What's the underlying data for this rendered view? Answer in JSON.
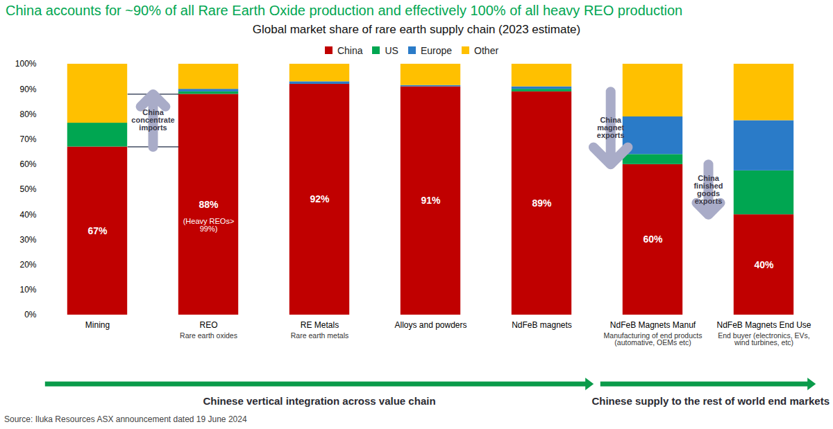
{
  "chart_data": {
    "type": "bar",
    "stacked": true,
    "title": "China accounts for ~90% of all Rare Earth Oxide production and effectively 100% of all heavy REO production",
    "subtitle": "Global market share of rare earth supply chain (2023 estimate)",
    "source": "Source: Iluka Resources ASX announcement dated 19 June 2024",
    "categories": [
      "Mining",
      "REO",
      "RE Metals",
      "Alloys and powders",
      "NdFeB magnets",
      "NdFeB Magnets Manuf",
      "NdFeB Magnets End Use"
    ],
    "category_descriptions": [
      null,
      "Rare earth oxides",
      "Rare earth metals",
      null,
      null,
      "Manufacturing of end products (automative, OEMs etc)",
      "End buyer (electronics, EVs, wind turbines, etc)"
    ],
    "series": [
      {
        "name": "China",
        "color": "#c00000",
        "values": [
          67,
          88,
          92,
          91,
          89,
          60,
          40
        ],
        "value_labels": [
          "67%",
          "88%",
          "92%",
          "91%",
          "89%",
          "60%",
          "40%"
        ],
        "data_labels": true
      },
      {
        "name": "US",
        "color": "#00a651",
        "values": [
          9.5,
          1,
          0,
          0,
          1,
          4,
          17.5
        ]
      },
      {
        "name": "Europe",
        "color": "#2a7bc8",
        "values": [
          0,
          1,
          1,
          0.5,
          1,
          15,
          20
        ]
      },
      {
        "name": "Other",
        "color": "#ffc000",
        "values": [
          23.5,
          10,
          7,
          8.5,
          9,
          21,
          22.5
        ]
      }
    ],
    "ylim": [
      0,
      100
    ],
    "yticks": [
      {
        "value": 0,
        "label": "0%"
      },
      {
        "value": 10,
        "label": "10%"
      },
      {
        "value": 20,
        "label": "20%"
      },
      {
        "value": 30,
        "label": "30%"
      },
      {
        "value": 40,
        "label": "40%"
      },
      {
        "value": 50,
        "label": "50%"
      },
      {
        "value": 60,
        "label": "60%"
      },
      {
        "value": 70,
        "label": "70%"
      },
      {
        "value": 80,
        "label": "80%"
      },
      {
        "value": 90,
        "label": "90%"
      },
      {
        "value": 100,
        "label": "100%"
      }
    ],
    "grid": false,
    "legend": "top",
    "annotations": [
      {
        "text": "(Heavy REOs> 99%)",
        "category": "REO"
      },
      {
        "text": "China concentrate imports",
        "from": "Mining",
        "to": "REO"
      },
      {
        "text": "China magnet exports",
        "from": "NdFeB magnets",
        "to": "NdFeB Magnets Manuf"
      },
      {
        "text": "China finished goods exports",
        "from": "NdFeB Magnets Manuf",
        "to": "NdFeB Magnets End Use"
      }
    ],
    "footer_arrows": [
      {
        "text": "Chinese vertical integration across value chain",
        "from": "Mining",
        "to": "NdFeB magnets"
      },
      {
        "text": "Chinese supply to the rest of world end markets",
        "from": "NdFeB Magnets Manuf",
        "to": "NdFeB Magnets End Use"
      }
    ]
  }
}
